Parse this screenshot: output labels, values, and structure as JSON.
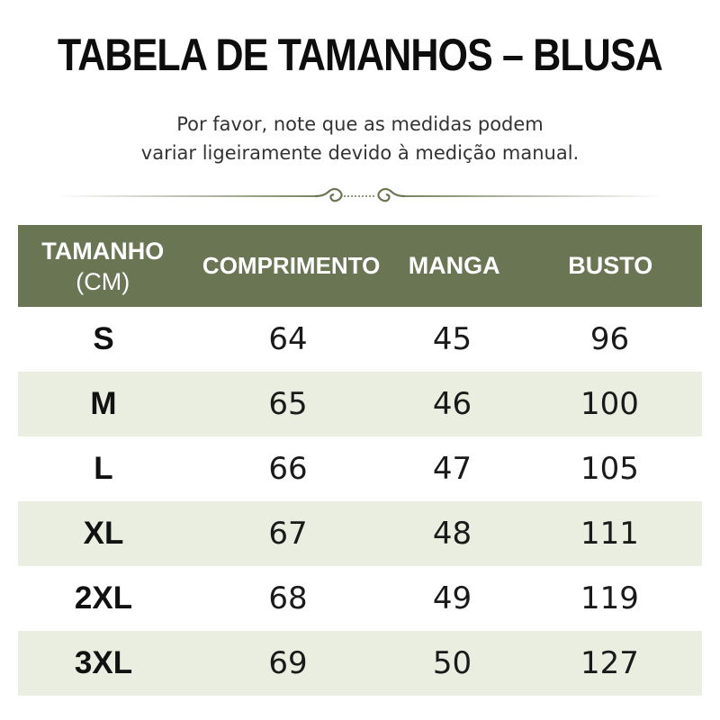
{
  "title": "TABELA DE TAMANHOS – BLUSA",
  "subtitle": {
    "line1": "Por favor, note que as medidas podem",
    "line2": "variar ligeiramente devido à medição manual."
  },
  "colors": {
    "header_bg": "#6a7553",
    "alt_row_bg": "#eaeee0",
    "divider": "#7a8564"
  },
  "table": {
    "headers": {
      "size_line1": "TAMANHO",
      "size_line2": "(CM)",
      "length": "COMPRIMENTO",
      "sleeve": "MANGA",
      "bust": "BUSTO"
    },
    "rows": [
      {
        "size": "S",
        "length": "64",
        "sleeve": "45",
        "bust": "96"
      },
      {
        "size": "M",
        "length": "65",
        "sleeve": "46",
        "bust": "100"
      },
      {
        "size": "L",
        "length": "66",
        "sleeve": "47",
        "bust": "105"
      },
      {
        "size": "XL",
        "length": "67",
        "sleeve": "48",
        "bust": "111"
      },
      {
        "size": "2XL",
        "length": "68",
        "sleeve": "49",
        "bust": "119"
      },
      {
        "size": "3XL",
        "length": "69",
        "sleeve": "50",
        "bust": "127"
      }
    ]
  }
}
